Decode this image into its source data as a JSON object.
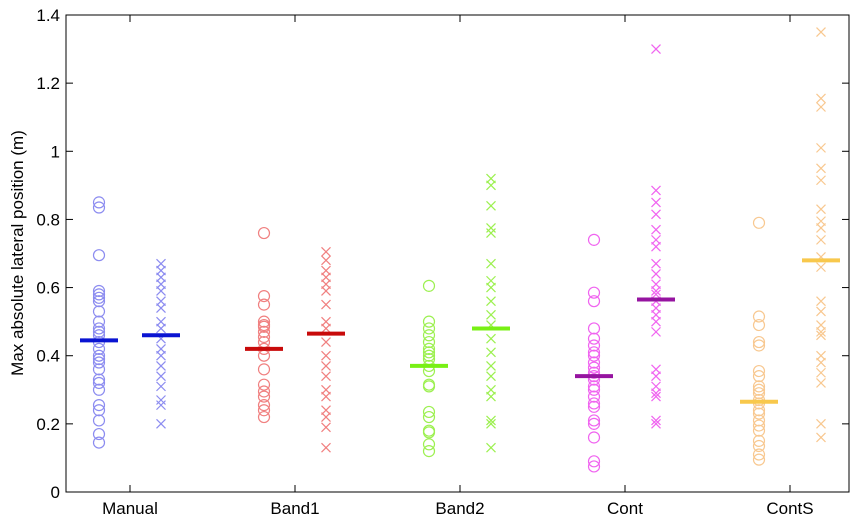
{
  "chart_data": {
    "type": "scatter",
    "title": "",
    "xlabel": "",
    "ylabel": "Max absolute lateral position (m)",
    "ylim": [
      0,
      1.4
    ],
    "yticks": [
      0,
      0.2,
      0.4,
      0.6,
      0.8,
      1,
      1.2,
      1.4
    ],
    "ytick_labels": [
      "0",
      "0.2",
      "0.4",
      "0.6",
      "0.8",
      "1",
      "1.2",
      "1.4"
    ],
    "categories": [
      "Manual",
      "Band1",
      "Band2",
      "Cont",
      "ContS"
    ],
    "grid": false,
    "legend": "none",
    "groups": [
      {
        "category": "Manual",
        "color": "#8c8cf0",
        "mean_color": "#0a14d2",
        "circles": {
          "mean": 0.445,
          "values": [
            0.85,
            0.835,
            0.695,
            0.59,
            0.58,
            0.57,
            0.56,
            0.53,
            0.5,
            0.48,
            0.47,
            0.46,
            0.44,
            0.42,
            0.4,
            0.39,
            0.38,
            0.36,
            0.33,
            0.32,
            0.3,
            0.255,
            0.24,
            0.21,
            0.17,
            0.145
          ]
        },
        "crosses": {
          "mean": 0.46,
          "values": [
            0.67,
            0.65,
            0.63,
            0.61,
            0.59,
            0.56,
            0.54,
            0.5,
            0.48,
            0.45,
            0.42,
            0.4,
            0.37,
            0.34,
            0.31,
            0.27,
            0.255,
            0.2
          ]
        }
      },
      {
        "category": "Band1",
        "color": "#f08080",
        "mean_color": "#c80a0a",
        "circles": {
          "mean": 0.42,
          "values": [
            0.76,
            0.575,
            0.55,
            0.5,
            0.49,
            0.485,
            0.47,
            0.455,
            0.44,
            0.42,
            0.4,
            0.36,
            0.315,
            0.295,
            0.28,
            0.255,
            0.24,
            0.22
          ]
        },
        "crosses": {
          "mean": 0.465,
          "values": [
            0.705,
            0.68,
            0.65,
            0.63,
            0.61,
            0.59,
            0.55,
            0.5,
            0.48,
            0.44,
            0.4,
            0.37,
            0.34,
            0.3,
            0.28,
            0.24,
            0.22,
            0.19,
            0.13
          ]
        }
      },
      {
        "category": "Band2",
        "color": "#9cf050",
        "mean_color": "#78f014",
        "circles": {
          "mean": 0.37,
          "values": [
            0.605,
            0.5,
            0.48,
            0.46,
            0.44,
            0.42,
            0.41,
            0.4,
            0.39,
            0.37,
            0.355,
            0.315,
            0.31,
            0.235,
            0.22,
            0.18,
            0.175,
            0.14,
            0.12
          ]
        },
        "crosses": {
          "mean": 0.48,
          "values": [
            0.92,
            0.9,
            0.84,
            0.775,
            0.76,
            0.67,
            0.62,
            0.6,
            0.56,
            0.52,
            0.49,
            0.45,
            0.41,
            0.37,
            0.34,
            0.3,
            0.28,
            0.21,
            0.2,
            0.13
          ]
        }
      },
      {
        "category": "Cont",
        "color": "#f064f0",
        "mean_color": "#9614a0",
        "circles": {
          "mean": 0.34,
          "values": [
            0.74,
            0.585,
            0.56,
            0.48,
            0.45,
            0.43,
            0.41,
            0.4,
            0.38,
            0.365,
            0.35,
            0.34,
            0.33,
            0.31,
            0.3,
            0.28,
            0.26,
            0.25,
            0.21,
            0.2,
            0.16,
            0.09,
            0.075
          ]
        },
        "crosses": {
          "mean": 0.565,
          "values": [
            1.3,
            0.885,
            0.85,
            0.815,
            0.77,
            0.74,
            0.72,
            0.67,
            0.64,
            0.61,
            0.59,
            0.58,
            0.56,
            0.54,
            0.52,
            0.5,
            0.47,
            0.36,
            0.34,
            0.31,
            0.29,
            0.28,
            0.21,
            0.2
          ]
        }
      },
      {
        "category": "ContS",
        "color": "#f8c890",
        "mean_color": "#f8c84c",
        "circles": {
          "mean": 0.265,
          "values": [
            0.79,
            0.515,
            0.49,
            0.44,
            0.43,
            0.355,
            0.34,
            0.31,
            0.3,
            0.29,
            0.27,
            0.26,
            0.24,
            0.23,
            0.21,
            0.195,
            0.18,
            0.15,
            0.135,
            0.11,
            0.095
          ]
        },
        "crosses": {
          "mean": 0.68,
          "values": [
            1.35,
            1.155,
            1.13,
            1.01,
            0.95,
            0.915,
            0.83,
            0.795,
            0.775,
            0.74,
            0.69,
            0.66,
            0.56,
            0.53,
            0.49,
            0.47,
            0.46,
            0.4,
            0.38,
            0.35,
            0.32,
            0.2,
            0.16
          ]
        }
      }
    ]
  }
}
